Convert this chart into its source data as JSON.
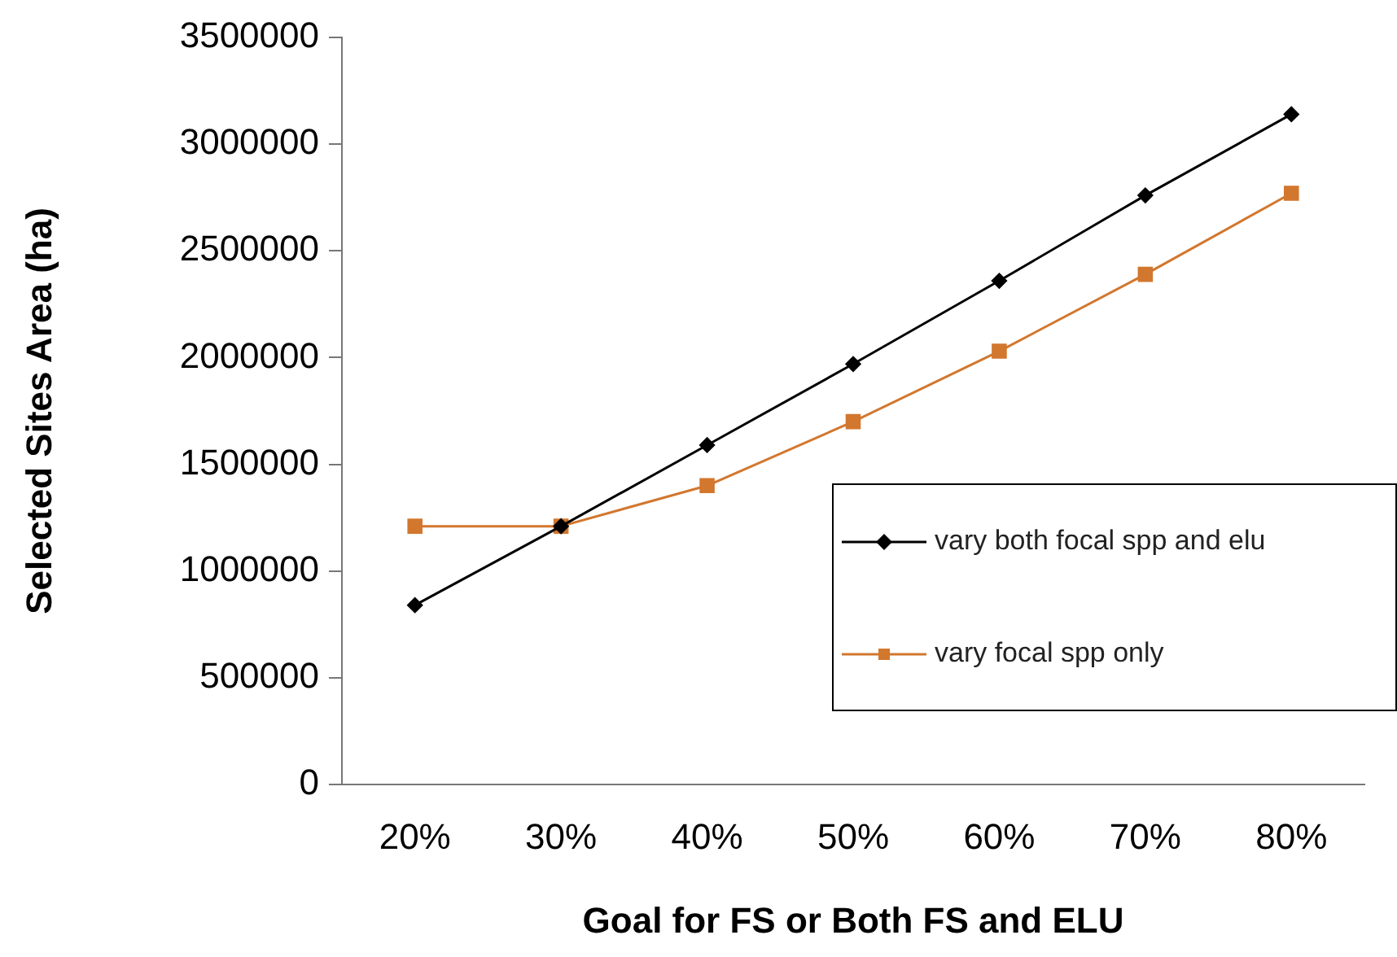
{
  "chart_data": {
    "type": "line",
    "xlabel": "Goal for FS or Both FS and ELU",
    "ylabel": "Selected Sites Area (ha)",
    "categories": [
      "20%",
      "30%",
      "40%",
      "50%",
      "60%",
      "70%",
      "80%"
    ],
    "series": [
      {
        "name": "vary both focal spp and elu",
        "color": "#000000",
        "marker": "diamond",
        "values": [
          840000,
          1210000,
          1590000,
          1970000,
          2360000,
          2760000,
          3140000
        ]
      },
      {
        "name": "vary focal spp only",
        "color": "#d2772e",
        "marker": "square",
        "values": [
          1210000,
          1210000,
          1400000,
          1700000,
          2030000,
          2390000,
          2770000
        ]
      }
    ],
    "ylim": [
      0,
      3500000
    ],
    "yticks": [
      0,
      500000,
      1000000,
      1500000,
      2000000,
      2500000,
      3000000,
      3500000
    ],
    "grid": false,
    "legend": "right",
    "line_style": "solid"
  }
}
